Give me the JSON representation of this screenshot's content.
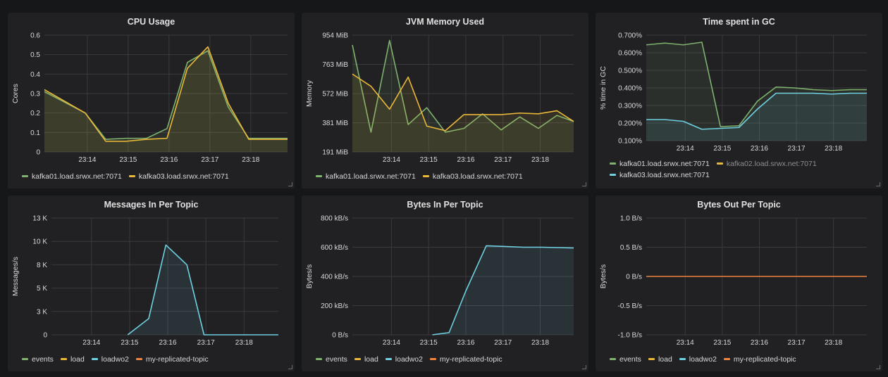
{
  "colors": {
    "kafka01": "#7eb26d",
    "kafka02": "#eab839",
    "kafka03": "#6ed0e0",
    "events": "#7eb26d",
    "load": "#eab839",
    "loadwo2": "#6ed0e0",
    "my-replicated-topic": "#ef843c"
  },
  "panels": [
    {
      "title": "CPU Usage",
      "legend": [
        {
          "label": "kafka01.load.srwx.net:7071",
          "color": "#7eb26d",
          "muted": false
        },
        {
          "label": "kafka03.load.srwx.net:7071",
          "color": "#eab839",
          "muted": false
        }
      ],
      "chart_data": {
        "type": "line",
        "title": "CPU Usage",
        "xlabel": "",
        "ylabel": "Cores",
        "xlim": [
          0,
          5.95
        ],
        "ylim": [
          0,
          0.6
        ],
        "yticks": [
          0,
          0.1,
          0.2,
          0.3,
          0.4,
          0.5,
          0.6
        ],
        "yticklabels": [
          "0",
          "0.1",
          "0.2",
          "0.3",
          "0.4",
          "0.5",
          "0.6"
        ],
        "xticks": [
          1.05,
          2.05,
          3.05,
          4.05,
          5.05
        ],
        "xticklabels": [
          "23:14",
          "23:15",
          "23:16",
          "23:17",
          "23:18"
        ],
        "grid": true,
        "series": [
          {
            "name": "kafka01.load.srwx.net:7071",
            "color": "#7eb26d",
            "fill": true,
            "x": [
              0,
              1,
              1.5,
              2.0,
              2.5,
              3.0,
              3.5,
              4.0,
              4.5,
              5.0,
              5.5,
              5.95
            ],
            "y": [
              0.31,
              0.2,
              0.065,
              0.07,
              0.07,
              0.12,
              0.46,
              0.52,
              0.23,
              0.07,
              0.07,
              0.07
            ]
          },
          {
            "name": "kafka03.load.srwx.net:7071",
            "color": "#eab839",
            "fill": true,
            "x": [
              0,
              1,
              1.5,
              2.0,
              2.5,
              3.0,
              3.5,
              4.0,
              4.5,
              5.0,
              5.5,
              5.95
            ],
            "y": [
              0.32,
              0.2,
              0.055,
              0.055,
              0.065,
              0.07,
              0.43,
              0.54,
              0.25,
              0.065,
              0.065,
              0.065
            ]
          }
        ]
      }
    },
    {
      "title": "JVM Memory Used",
      "legend": [
        {
          "label": "kafka01.load.srwx.net:7071",
          "color": "#7eb26d",
          "muted": false
        },
        {
          "label": "kafka03.load.srwx.net:7071",
          "color": "#eab839",
          "muted": false
        }
      ],
      "chart_data": {
        "type": "line",
        "title": "JVM Memory Used",
        "xlabel": "",
        "ylabel": "Memory",
        "xlim": [
          0,
          5.95
        ],
        "ylim": [
          191,
          954
        ],
        "yticks": [
          191,
          381,
          572,
          763,
          954
        ],
        "yticklabels": [
          "191 MiB",
          "381 MiB",
          "572 MiB",
          "763 MiB",
          "954 MiB"
        ],
        "xticks": [
          1.05,
          2.05,
          3.05,
          4.05,
          5.05
        ],
        "xticklabels": [
          "23:14",
          "23:15",
          "23:16",
          "23:17",
          "23:18"
        ],
        "grid": true,
        "series": [
          {
            "name": "kafka01.load.srwx.net:7071",
            "color": "#7eb26d",
            "fill": true,
            "x": [
              0,
              0.5,
              1.0,
              1.5,
              2.0,
              2.5,
              3.0,
              3.5,
              4.0,
              4.5,
              5.0,
              5.5,
              5.95
            ],
            "y": [
              890,
              320,
              920,
              370,
              480,
              320,
              345,
              440,
              335,
              420,
              345,
              430,
              390
            ]
          },
          {
            "name": "kafka03.load.srwx.net:7071",
            "color": "#eab839",
            "fill": true,
            "x": [
              0,
              0.5,
              1.0,
              1.5,
              2.0,
              2.5,
              3.0,
              3.5,
              4.0,
              4.5,
              5.0,
              5.5,
              5.95
            ],
            "y": [
              700,
              620,
              470,
              680,
              360,
              330,
              435,
              435,
              435,
              445,
              440,
              460,
              390
            ]
          }
        ]
      }
    },
    {
      "title": "Time spent in GC",
      "legend": [
        {
          "label": "kafka01.load.srwx.net:7071",
          "color": "#7eb26d",
          "muted": false
        },
        {
          "label": "kafka02.load.srwx.net:7071",
          "color": "#eab839",
          "muted": true
        },
        {
          "label": "kafka03.load.srwx.net:7071",
          "color": "#6ed0e0",
          "muted": false
        }
      ],
      "chart_data": {
        "type": "line",
        "title": "Time spent in GC",
        "xlabel": "",
        "ylabel": "% time in GC",
        "xlim": [
          0,
          5.95
        ],
        "ylim": [
          0.1,
          0.7
        ],
        "yticks": [
          0.1,
          0.2,
          0.3,
          0.4,
          0.5,
          0.6,
          0.7
        ],
        "yticklabels": [
          "0.100%",
          "0.200%",
          "0.300%",
          "0.400%",
          "0.500%",
          "0.600%",
          "0.700%"
        ],
        "xticks": [
          1.05,
          2.05,
          3.05,
          4.05,
          5.05
        ],
        "xticklabels": [
          "23:14",
          "23:15",
          "23:16",
          "23:17",
          "23:18"
        ],
        "grid": true,
        "series": [
          {
            "name": "kafka01.load.srwx.net:7071",
            "color": "#7eb26d",
            "fill": true,
            "x": [
              0,
              0.5,
              1.0,
              1.5,
              2.0,
              2.5,
              3.0,
              3.5,
              4.0,
              4.5,
              5.0,
              5.5,
              5.95
            ],
            "y": [
              0.645,
              0.655,
              0.645,
              0.66,
              0.18,
              0.185,
              0.325,
              0.405,
              0.4,
              0.39,
              0.385,
              0.39,
              0.39
            ]
          },
          {
            "name": "kafka02.load.srwx.net:7071",
            "color": "#eab839",
            "fill": false,
            "x": [],
            "y": []
          },
          {
            "name": "kafka03.load.srwx.net:7071",
            "color": "#6ed0e0",
            "fill": true,
            "x": [
              0,
              0.5,
              1.0,
              1.5,
              2.0,
              2.5,
              3.0,
              3.5,
              4.0,
              4.5,
              5.0,
              5.5,
              5.95
            ],
            "y": [
              0.22,
              0.22,
              0.21,
              0.165,
              0.17,
              0.175,
              0.28,
              0.37,
              0.37,
              0.37,
              0.365,
              0.37,
              0.37
            ]
          }
        ]
      }
    },
    {
      "title": "Messages In Per Topic",
      "legend": [
        {
          "label": "events",
          "color": "#7eb26d",
          "muted": false
        },
        {
          "label": "load",
          "color": "#eab839",
          "muted": false
        },
        {
          "label": "loadwo2",
          "color": "#6ed0e0",
          "muted": false
        },
        {
          "label": "my-replicated-topic",
          "color": "#ef843c",
          "muted": false
        }
      ],
      "chart_data": {
        "type": "line",
        "title": "Messages In Per Topic",
        "xlabel": "",
        "ylabel": "Messages/s",
        "xlim": [
          0,
          5.95
        ],
        "ylim": [
          0,
          13000
        ],
        "yticks": [
          0,
          2600,
          5200,
          7800,
          10400,
          13000
        ],
        "yticklabels": [
          "0",
          "3 K",
          "5 K",
          "8 K",
          "10 K",
          "13 K"
        ],
        "xticks": [
          1.05,
          2.05,
          3.05,
          4.05,
          5.05
        ],
        "xticklabels": [
          "23:14",
          "23:15",
          "23:16",
          "23:17",
          "23:18"
        ],
        "grid": true,
        "series": [
          {
            "name": "loadwo2",
            "color": "#6ed0e0",
            "fill": true,
            "x": [
              2.0,
              2.55,
              3.0,
              3.55,
              4.0,
              4.5,
              5.0,
              5.5,
              5.95
            ],
            "y": [
              0,
              1800,
              10000,
              7800,
              0,
              0,
              0,
              0,
              0
            ]
          }
        ]
      }
    },
    {
      "title": "Bytes In Per Topic",
      "legend": [
        {
          "label": "events",
          "color": "#7eb26d",
          "muted": false
        },
        {
          "label": "load",
          "color": "#eab839",
          "muted": false
        },
        {
          "label": "loadwo2",
          "color": "#6ed0e0",
          "muted": false
        },
        {
          "label": "my-replicated-topic",
          "color": "#ef843c",
          "muted": false
        }
      ],
      "chart_data": {
        "type": "line",
        "title": "Bytes In Per Topic",
        "xlabel": "",
        "ylabel": "Bytes/s",
        "xlim": [
          0,
          5.95
        ],
        "ylim": [
          0,
          800
        ],
        "yticks": [
          0,
          200,
          400,
          600,
          800
        ],
        "yticklabels": [
          "0 B/s",
          "200 kB/s",
          "400 kB/s",
          "600 kB/s",
          "800 kB/s"
        ],
        "xticks": [
          1.05,
          2.05,
          3.05,
          4.05,
          5.05
        ],
        "xticklabels": [
          "23:14",
          "23:15",
          "23:16",
          "23:17",
          "23:18"
        ],
        "grid": true,
        "series": [
          {
            "name": "loadwo2",
            "color": "#6ed0e0",
            "fill": true,
            "x": [
              2.15,
              2.6,
              3.05,
              3.6,
              4.1,
              4.6,
              5.1,
              5.6,
              5.95
            ],
            "y": [
              0,
              15,
              300,
              610,
              605,
              600,
              600,
              597,
              595
            ]
          }
        ]
      }
    },
    {
      "title": "Bytes Out Per Topic",
      "legend": [
        {
          "label": "events",
          "color": "#7eb26d",
          "muted": false
        },
        {
          "label": "load",
          "color": "#eab839",
          "muted": false
        },
        {
          "label": "loadwo2",
          "color": "#6ed0e0",
          "muted": false
        },
        {
          "label": "my-replicated-topic",
          "color": "#ef843c",
          "muted": false
        }
      ],
      "chart_data": {
        "type": "line",
        "title": "Bytes Out Per Topic",
        "xlabel": "",
        "ylabel": "Bytes/s",
        "xlim": [
          0,
          5.95
        ],
        "ylim": [
          -1.0,
          1.0
        ],
        "yticks": [
          -1.0,
          -0.5,
          0,
          0.5,
          1.0
        ],
        "yticklabels": [
          "-1.0 B/s",
          "-0.5 B/s",
          "0 B/s",
          "0.5 B/s",
          "1.0 B/s"
        ],
        "xticks": [
          1.05,
          2.05,
          3.05,
          4.05,
          5.05
        ],
        "xticklabels": [
          "23:14",
          "23:15",
          "23:16",
          "23:17",
          "23:18"
        ],
        "grid": true,
        "series": [
          {
            "name": "my-replicated-topic",
            "color": "#ef843c",
            "fill": false,
            "x": [
              0,
              5.95
            ],
            "y": [
              0,
              0
            ]
          }
        ]
      }
    }
  ]
}
